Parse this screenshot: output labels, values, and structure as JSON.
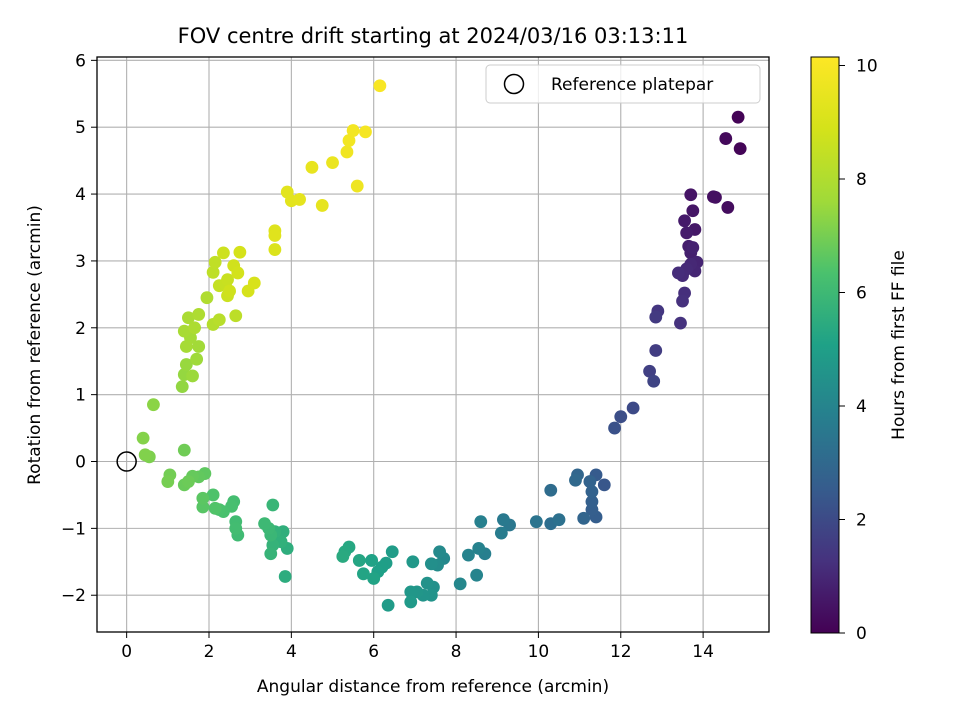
{
  "chart_data": {
    "type": "scatter",
    "title": "FOV centre drift starting at 2024/03/16 03:13:11",
    "xlabel": "Angular distance from reference (arcmin)",
    "ylabel": "Rotation from reference (arcmin)",
    "xlim": [
      -0.72,
      15.6
    ],
    "ylim": [
      -2.55,
      6.05
    ],
    "xticks": [
      0,
      2,
      4,
      6,
      8,
      10,
      12,
      14
    ],
    "yticks": [
      -2,
      -1,
      0,
      1,
      2,
      3,
      4,
      5,
      6
    ],
    "grid": true,
    "legend": {
      "placement": "top-right",
      "entries": [
        "Reference platepar"
      ]
    },
    "reference_point": {
      "name": "Reference platepar",
      "x": 0,
      "y": 0
    },
    "colorbar": {
      "label": "Hours from first FF file",
      "range": [
        0,
        10.15
      ],
      "ticks": [
        0,
        2,
        4,
        6,
        8,
        10
      ],
      "colormap": "viridis"
    },
    "points": [
      [
        14.85,
        5.15,
        0.05
      ],
      [
        14.9,
        4.68,
        0.1
      ],
      [
        14.55,
        4.83,
        0.2
      ],
      [
        14.6,
        3.8,
        0.3
      ],
      [
        14.3,
        3.95,
        0.35
      ],
      [
        14.25,
        3.96,
        0.4
      ],
      [
        13.7,
        3.99,
        0.5
      ],
      [
        13.75,
        3.75,
        0.55
      ],
      [
        13.8,
        3.47,
        0.6
      ],
      [
        13.55,
        3.6,
        0.65
      ],
      [
        13.6,
        3.42,
        0.7
      ],
      [
        13.65,
        3.22,
        0.75
      ],
      [
        13.7,
        3.12,
        0.8
      ],
      [
        13.75,
        3.2,
        0.85
      ],
      [
        13.85,
        2.98,
        0.9
      ],
      [
        13.8,
        2.85,
        0.95
      ],
      [
        13.7,
        2.95,
        1.0
      ],
      [
        13.6,
        2.88,
        1.05
      ],
      [
        13.5,
        2.78,
        1.1
      ],
      [
        13.4,
        2.82,
        1.15
      ],
      [
        13.55,
        2.52,
        1.2
      ],
      [
        13.5,
        2.4,
        1.25
      ],
      [
        13.45,
        2.07,
        1.3
      ],
      [
        12.9,
        2.25,
        1.4
      ],
      [
        12.85,
        2.16,
        1.5
      ],
      [
        12.85,
        1.66,
        1.6
      ],
      [
        12.7,
        1.35,
        1.7
      ],
      [
        12.8,
        1.2,
        1.8
      ],
      [
        12.3,
        0.8,
        2.0
      ],
      [
        12.0,
        0.67,
        2.1
      ],
      [
        11.85,
        0.5,
        2.2
      ],
      [
        11.6,
        -0.35,
        2.4
      ],
      [
        11.4,
        -0.2,
        2.5
      ],
      [
        11.4,
        -0.83,
        2.6
      ],
      [
        11.3,
        -0.72,
        2.65
      ],
      [
        11.3,
        -0.6,
        2.7
      ],
      [
        11.3,
        -0.45,
        2.75
      ],
      [
        11.25,
        -0.3,
        2.8
      ],
      [
        11.1,
        -0.85,
        2.85
      ],
      [
        10.95,
        -0.2,
        2.9
      ],
      [
        10.9,
        -0.28,
        3.0
      ],
      [
        10.3,
        -0.43,
        3.1
      ],
      [
        10.3,
        -0.93,
        3.2
      ],
      [
        10.5,
        -0.87,
        3.3
      ],
      [
        9.95,
        -0.9,
        3.4
      ],
      [
        9.3,
        -0.95,
        3.5
      ],
      [
        9.15,
        -0.87,
        3.6
      ],
      [
        9.1,
        -1.07,
        3.7
      ],
      [
        8.7,
        -1.38,
        3.8
      ],
      [
        8.6,
        -0.9,
        3.85
      ],
      [
        8.55,
        -1.3,
        3.9
      ],
      [
        8.3,
        -1.4,
        3.95
      ],
      [
        8.5,
        -1.7,
        4.0
      ],
      [
        8.1,
        -1.83,
        4.1
      ],
      [
        7.7,
        -1.45,
        4.15
      ],
      [
        7.6,
        -1.35,
        4.2
      ],
      [
        7.55,
        -1.55,
        4.3
      ],
      [
        7.4,
        -1.53,
        4.4
      ],
      [
        7.45,
        -1.88,
        4.45
      ],
      [
        7.3,
        -1.82,
        4.5
      ],
      [
        7.4,
        -2.0,
        4.55
      ],
      [
        7.2,
        -2.0,
        4.6
      ],
      [
        7.05,
        -1.95,
        4.65
      ],
      [
        6.9,
        -1.95,
        4.7
      ],
      [
        6.95,
        -1.5,
        4.75
      ],
      [
        6.9,
        -2.1,
        4.8
      ],
      [
        6.35,
        -2.15,
        4.85
      ],
      [
        6.45,
        -1.35,
        4.9
      ],
      [
        6.3,
        -1.52,
        4.95
      ],
      [
        6.2,
        -1.58,
        5.0
      ],
      [
        6.1,
        -1.65,
        5.05
      ],
      [
        5.95,
        -1.48,
        5.1
      ],
      [
        6.0,
        -1.75,
        5.15
      ],
      [
        5.75,
        -1.68,
        5.2
      ],
      [
        5.65,
        -1.48,
        5.25
      ],
      [
        5.4,
        -1.28,
        5.3
      ],
      [
        5.3,
        -1.35,
        5.35
      ],
      [
        5.25,
        -1.42,
        5.4
      ],
      [
        3.85,
        -1.72,
        5.5
      ],
      [
        3.9,
        -1.3,
        5.55
      ],
      [
        3.8,
        -1.05,
        5.6
      ],
      [
        3.75,
        -1.2,
        5.65
      ],
      [
        3.6,
        -1.05,
        5.7
      ],
      [
        3.55,
        -1.25,
        5.75
      ],
      [
        3.5,
        -1.38,
        5.8
      ],
      [
        3.55,
        -0.65,
        5.85
      ],
      [
        3.5,
        -1.1,
        5.9
      ],
      [
        3.45,
        -1.0,
        5.95
      ],
      [
        3.35,
        -0.93,
        6.0
      ],
      [
        2.7,
        -1.1,
        6.05
      ],
      [
        2.65,
        -0.9,
        6.1
      ],
      [
        2.65,
        -1.0,
        6.15
      ],
      [
        2.6,
        -0.6,
        6.2
      ],
      [
        2.55,
        -0.67,
        6.25
      ],
      [
        2.35,
        -0.75,
        6.3
      ],
      [
        2.25,
        -0.72,
        6.35
      ],
      [
        2.1,
        -0.5,
        6.4
      ],
      [
        2.15,
        -0.7,
        6.45
      ],
      [
        1.85,
        -0.68,
        6.55
      ],
      [
        1.85,
        -0.55,
        6.6
      ],
      [
        1.9,
        -0.18,
        6.65
      ],
      [
        1.75,
        -0.23,
        6.7
      ],
      [
        1.6,
        -0.22,
        6.75
      ],
      [
        1.4,
        -0.35,
        6.8
      ],
      [
        1.5,
        -0.3,
        6.85
      ],
      [
        1.4,
        0.17,
        6.9
      ],
      [
        1.05,
        -0.2,
        6.95
      ],
      [
        1.0,
        -0.3,
        7.0
      ],
      [
        0.55,
        0.07,
        7.1
      ],
      [
        0.45,
        0.1,
        7.15
      ],
      [
        0.4,
        0.35,
        7.2
      ],
      [
        0.65,
        0.85,
        7.3
      ],
      [
        1.35,
        1.12,
        7.4
      ],
      [
        1.4,
        1.3,
        7.45
      ],
      [
        1.45,
        1.45,
        7.5
      ],
      [
        1.6,
        1.28,
        7.55
      ],
      [
        1.7,
        1.53,
        7.6
      ],
      [
        1.75,
        1.72,
        7.65
      ],
      [
        1.55,
        1.85,
        7.7
      ],
      [
        1.45,
        1.72,
        7.75
      ],
      [
        1.4,
        1.95,
        7.8
      ],
      [
        1.5,
        2.15,
        7.85
      ],
      [
        1.65,
        2.0,
        7.9
      ],
      [
        1.75,
        2.2,
        7.95
      ],
      [
        1.95,
        2.45,
        8.0
      ],
      [
        2.1,
        2.05,
        8.1
      ],
      [
        2.25,
        2.12,
        8.2
      ],
      [
        2.65,
        2.18,
        8.3
      ],
      [
        2.1,
        2.83,
        8.35
      ],
      [
        2.15,
        2.98,
        8.4
      ],
      [
        2.25,
        2.63,
        8.5
      ],
      [
        2.4,
        2.65,
        8.55
      ],
      [
        2.45,
        2.72,
        8.6
      ],
      [
        2.45,
        2.48,
        8.65
      ],
      [
        2.35,
        3.12,
        8.7
      ],
      [
        2.5,
        2.55,
        8.75
      ],
      [
        2.6,
        2.93,
        8.8
      ],
      [
        2.7,
        2.82,
        8.85
      ],
      [
        2.75,
        3.13,
        8.9
      ],
      [
        2.95,
        2.55,
        8.95
      ],
      [
        3.1,
        2.67,
        9.0
      ],
      [
        3.6,
        3.17,
        9.1
      ],
      [
        3.6,
        3.45,
        9.2
      ],
      [
        3.6,
        3.38,
        9.25
      ],
      [
        3.9,
        4.03,
        9.3
      ],
      [
        4.0,
        3.9,
        9.35
      ],
      [
        4.2,
        3.92,
        9.4
      ],
      [
        4.75,
        3.83,
        9.45
      ],
      [
        4.5,
        4.4,
        9.5
      ],
      [
        5.0,
        4.47,
        9.6
      ],
      [
        5.6,
        4.12,
        9.7
      ],
      [
        5.35,
        4.63,
        9.75
      ],
      [
        5.4,
        4.8,
        9.8
      ],
      [
        5.5,
        4.95,
        9.85
      ],
      [
        5.8,
        4.93,
        9.9
      ],
      [
        6.15,
        5.62,
        10.0
      ]
    ]
  }
}
